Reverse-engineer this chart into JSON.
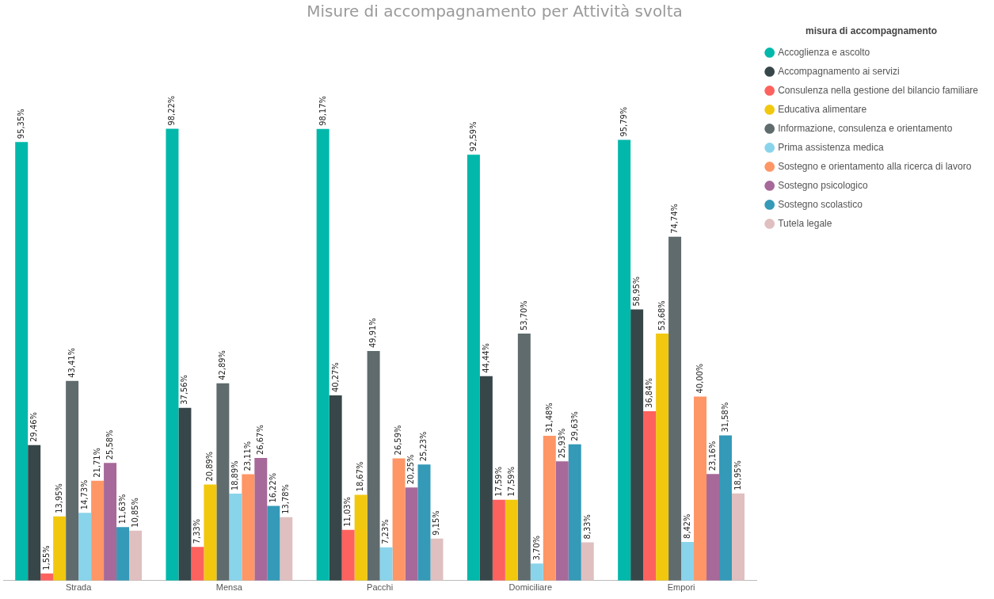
{
  "chart_data": {
    "type": "bar",
    "title": "Misure di accompagnamento per Attività svolta",
    "legend_title": "misura di accompagnamento",
    "legend": "top right",
    "grid": false,
    "tick_labels": "x",
    "data_labels": true,
    "categories": [
      "Strada",
      "Mensa",
      "Pacchi",
      "Domiciliare",
      "Empori"
    ],
    "series": [
      {
        "name": "Accoglienza e ascolto",
        "color": "#01b8aa",
        "values": [
          95.35,
          98.22,
          98.17,
          92.59,
          95.79
        ],
        "value_labels": [
          "95,35%",
          "98,22%",
          "98,17%",
          "92,59%",
          "95,79%"
        ]
      },
      {
        "name": "Accompagnamento ai servizi",
        "color": "#374649",
        "values": [
          29.46,
          37.56,
          40.27,
          44.44,
          58.95
        ],
        "value_labels": [
          "29,46%",
          "37,56%",
          "40,27%",
          "44,44%",
          "58,95%"
        ]
      },
      {
        "name": "Consulenza nella gestione del bilancio familiare",
        "color": "#fd625e",
        "values": [
          1.55,
          7.33,
          11.03,
          17.59,
          36.84
        ],
        "value_labels": [
          "1,55%",
          "7,33%",
          "11,03%",
          "17,59%",
          "36,84%"
        ]
      },
      {
        "name": "Educativa alimentare",
        "color": "#f2c80f",
        "values": [
          13.95,
          20.89,
          18.67,
          17.59,
          53.68
        ],
        "value_labels": [
          "13,95%",
          "20,89%",
          "18,67%",
          "17,59%",
          "53,68%"
        ]
      },
      {
        "name": "Informazione, consulenza e orientamento",
        "color": "#5f6b6d",
        "values": [
          43.41,
          42.89,
          49.91,
          53.7,
          74.74
        ],
        "value_labels": [
          "43,41%",
          "42,89%",
          "49,91%",
          "53,70%",
          "74,74%"
        ]
      },
      {
        "name": "Prima assistenza medica",
        "color": "#8ad4eb",
        "values": [
          14.73,
          18.89,
          7.23,
          3.7,
          8.42
        ],
        "value_labels": [
          "14,73%",
          "18,89%",
          "7,23%",
          "3,70%",
          "8,42%"
        ]
      },
      {
        "name": "Sostegno e orientamento alla ricerca di lavoro",
        "color": "#fe9666",
        "values": [
          21.71,
          23.11,
          26.59,
          31.48,
          40.0
        ],
        "value_labels": [
          "21,71%",
          "23,11%",
          "26,59%",
          "31,48%",
          "40,00%"
        ]
      },
      {
        "name": "Sostegno psicologico",
        "color": "#a66999",
        "values": [
          25.58,
          26.67,
          20.25,
          25.93,
          23.16
        ],
        "value_labels": [
          "25,58%",
          "26,67%",
          "20,25%",
          "25,93%",
          "23,16%"
        ]
      },
      {
        "name": "Sostegno scolastico",
        "color": "#3599b8",
        "values": [
          11.63,
          16.22,
          25.23,
          29.63,
          31.58
        ],
        "value_labels": [
          "11,63%",
          "16,22%",
          "25,23%",
          "29,63%",
          "31,58%"
        ]
      },
      {
        "name": "Tutela legale",
        "color": "#dfbfbf",
        "values": [
          10.85,
          13.78,
          9.15,
          8.33,
          18.95
        ],
        "value_labels": [
          "10,85%",
          "13,78%",
          "9,15%",
          "8,33%",
          "18,95%"
        ]
      }
    ]
  }
}
